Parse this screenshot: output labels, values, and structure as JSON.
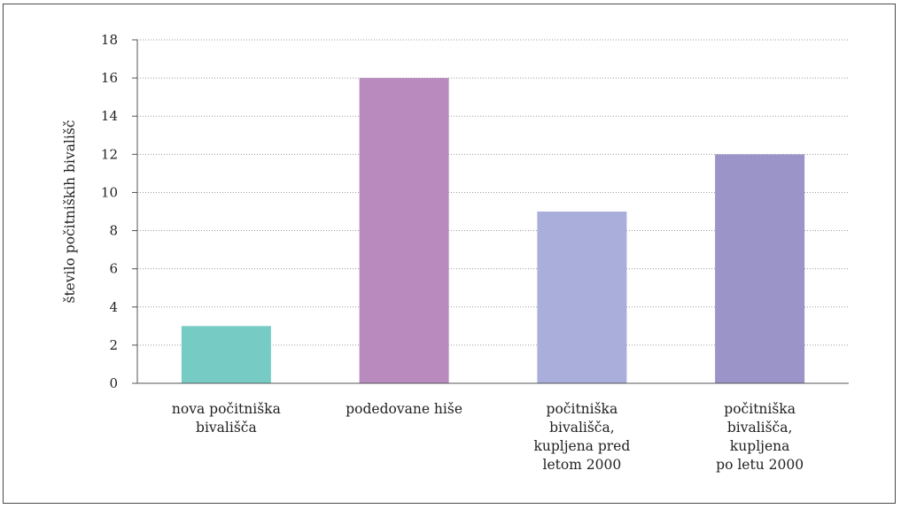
{
  "chart_data": {
    "type": "bar",
    "categories": [
      [
        "nova počitniška",
        "bivališča"
      ],
      [
        "podedovane hiše"
      ],
      [
        "počitniška",
        "bivališča,",
        "kupljena pred",
        "letom 2000"
      ],
      [
        "počitniška",
        "bivališča,",
        "kupljena",
        "po letu 2000"
      ]
    ],
    "values": [
      3,
      16,
      9,
      12
    ],
    "colors": [
      "#76cbc5",
      "#b88abd",
      "#a9aedb",
      "#9a94c8"
    ],
    "title": "",
    "xlabel": "",
    "ylabel": "število počitniških bivališč",
    "ylim": [
      0,
      18
    ],
    "yticks": [
      0,
      2,
      4,
      6,
      8,
      10,
      12,
      14,
      16,
      18
    ],
    "grid": "dotted horizontal",
    "legend": "none"
  }
}
